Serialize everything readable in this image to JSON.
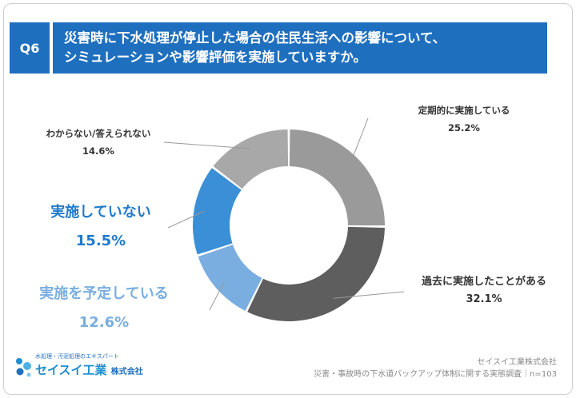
{
  "header": {
    "q_label": "Q6",
    "title_line1": "災害時に下水処理が停止した場合の住民生活への影響について、",
    "title_line2": "シミュレーションや影響評価を実施していますか。"
  },
  "chart_data": {
    "type": "pie",
    "subtype": "donut",
    "slices": [
      {
        "label": "定期的に実施している",
        "value": 25.2,
        "value_label": "25.2%",
        "color": "#9a9a9a"
      },
      {
        "label": "過去に実施したことがある",
        "value": 32.1,
        "value_label": "32.1%",
        "color": "#5e5e5e"
      },
      {
        "label": "実施を予定している",
        "value": 12.6,
        "value_label": "12.6%",
        "color": "#7aaee0"
      },
      {
        "label": "実施していない",
        "value": 15.5,
        "value_label": "15.5%",
        "color": "#3a8fd6"
      },
      {
        "label": "わからない/答えられない",
        "value": 14.6,
        "value_label": "14.6%",
        "color": "#a8a8a8"
      }
    ]
  },
  "logo": {
    "tagline": "水処理・汚泥処理のエキスパート",
    "name": "セイスイ工業",
    "suffix": "株式会社"
  },
  "footer": {
    "company": "セイスイ工業株式会社",
    "survey": "災害・事故時の下水道バックアップ体制に関する実態調査｜n=103"
  }
}
